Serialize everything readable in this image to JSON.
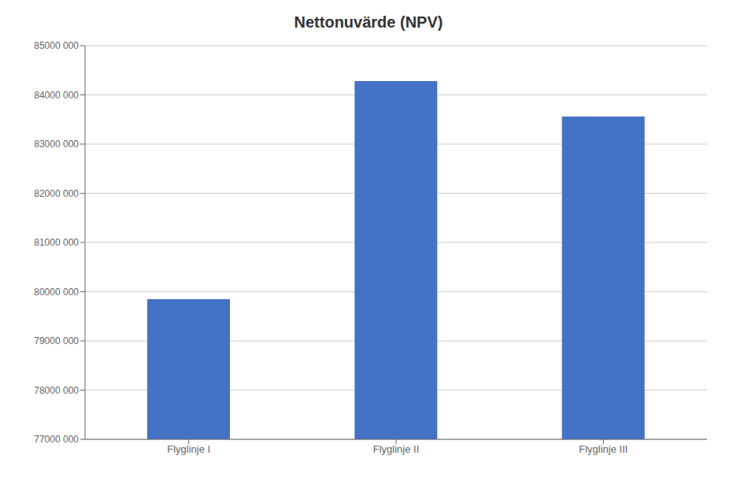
{
  "chart_data": {
    "type": "bar",
    "title": "Nettonuvärde (NPV)",
    "categories": [
      "Flyglinje I",
      "Flyglinje II",
      "Flyglinje III"
    ],
    "values": [
      79850000,
      84280000,
      83560000
    ],
    "color": "#4472C4",
    "ylim": [
      77000000,
      85000000
    ],
    "yticks": [
      {
        "value": 77000000,
        "label": "77000 000"
      },
      {
        "value": 78000000,
        "label": "78000 000"
      },
      {
        "value": 79000000,
        "label": "79000 000"
      },
      {
        "value": 80000000,
        "label": "80000 000"
      },
      {
        "value": 81000000,
        "label": "81000 000"
      },
      {
        "value": 82000000,
        "label": "82000 000"
      },
      {
        "value": 83000000,
        "label": "83000 000"
      },
      {
        "value": 84000000,
        "label": "84000 000"
      },
      {
        "value": 85000000,
        "label": "85000 000"
      }
    ],
    "grid": true
  }
}
